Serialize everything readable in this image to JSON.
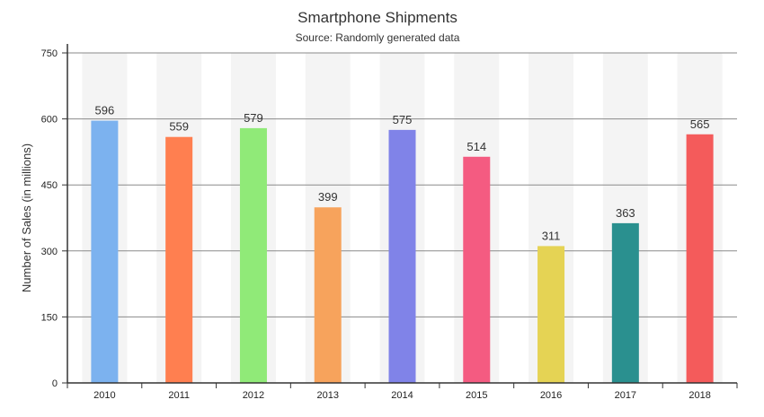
{
  "chart_data": {
    "type": "bar",
    "title": "Smartphone Shipments",
    "subtitle": "Source: Randomly generated data",
    "xlabel": "",
    "ylabel": "Number of Sales (in millions)",
    "categories": [
      "2010",
      "2011",
      "2012",
      "2013",
      "2014",
      "2015",
      "2016",
      "2017",
      "2018"
    ],
    "values": [
      596,
      559,
      579,
      399,
      575,
      514,
      311,
      363,
      565
    ],
    "ylim": [
      0,
      750
    ],
    "yticks": [
      "0",
      "150",
      "300",
      "450",
      "600",
      "750"
    ],
    "grid": true,
    "bar_colors": [
      "#7cb2ef",
      "#ff7f50",
      "#90ea78",
      "#f7a35c",
      "#8083e8",
      "#f45b81",
      "#e5d354",
      "#2a908f",
      "#f45b5b"
    ],
    "band_color": "#f4f4f4",
    "legend": "none"
  }
}
